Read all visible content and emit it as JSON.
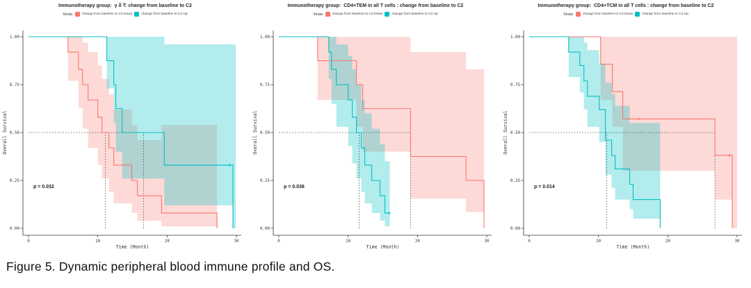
{
  "figure_caption": "Figure 5. Dynamic peripheral blood immune profile and OS.",
  "legend": {
    "strata_label": "Strata",
    "entries": [
      {
        "key": "down",
        "label": "change from baseline to C2-Down",
        "color": "#F8766D"
      },
      {
        "key": "up",
        "label": "change from baseline to C2-Up",
        "color": "#00BFC4"
      }
    ]
  },
  "axes": {
    "x_label": "Time (Month)",
    "y_label": "Overall Survival",
    "x_ticks": [
      0,
      10,
      20,
      30
    ],
    "y_ticks": [
      "0.00",
      "0.25",
      "0.50",
      "0.75",
      "1.00"
    ],
    "xlim": [
      0,
      30
    ],
    "ylim": [
      0,
      1
    ],
    "grid": false
  },
  "steps_format": "[time_months, survival_probability, ci_lower, ci_upper]",
  "chart_data": [
    {
      "type": "line",
      "subtype": "kaplan-meier",
      "title": "Immunotherapy group:  γ δ T: change from baseline to C2",
      "p_value": "p = 0.032",
      "median_survival_months": [
        11.1,
        16.6
      ],
      "series": [
        {
          "name": "change from baseline to C2-Down",
          "key": "down",
          "color": "#F8766D",
          "fill": "rgba(248,118,109,0.27)",
          "steps": [
            [
              0,
              1,
              1,
              1
            ],
            [
              5.7,
              0.92,
              0.77,
              1
            ],
            [
              7.2,
              0.83,
              0.63,
              1
            ],
            [
              7.8,
              0.75,
              0.52,
              0.97
            ],
            [
              8.6,
              0.67,
              0.42,
              0.92
            ],
            [
              10.0,
              0.58,
              0.33,
              0.85
            ],
            [
              10.6,
              0.5,
              0.26,
              0.78
            ],
            [
              11.6,
              0.42,
              0.19,
              0.7
            ],
            [
              12.3,
              0.33,
              0.13,
              0.62
            ],
            [
              14.9,
              0.25,
              0.08,
              0.54
            ],
            [
              15.7,
              0.17,
              0.04,
              0.46
            ],
            [
              19.2,
              0.08,
              0.01,
              0.54
            ],
            [
              27.2,
              0,
              0,
              0.54
            ]
          ],
          "censor_marks": []
        },
        {
          "name": "change from baseline to C2-Up",
          "key": "up",
          "color": "#00BFC4",
          "fill": "rgba(0,191,196,0.30)",
          "steps": [
            [
              0,
              1,
              1,
              1
            ],
            [
              11.3,
              0.875,
              0.73,
              1
            ],
            [
              12.3,
              0.75,
              0.55,
              1
            ],
            [
              12.6,
              0.625,
              0.4,
              1
            ],
            [
              13.5,
              0.5,
              0.26,
              1
            ],
            [
              19.6,
              0.33,
              0.12,
              0.96
            ],
            [
              29.5,
              0,
              0,
              0.96
            ]
          ],
          "band_tail_t": 29.9,
          "censor_marks": [
            [
              29.0,
              0.33
            ]
          ]
        }
      ]
    },
    {
      "type": "line",
      "subtype": "kaplan-meier",
      "title": "Immunotherapy group:  CD4+TEM in all T cells : change from baseline to C2",
      "p_value": "p = 0.036",
      "median_survival_months": [
        11.6,
        19.0
      ],
      "series": [
        {
          "name": "change from baseline to C2-Down",
          "key": "down",
          "color": "#F8766D",
          "fill": "rgba(248,118,109,0.27)",
          "steps": [
            [
              0,
              1,
              1,
              1
            ],
            [
              5.6,
              0.875,
              0.67,
              1
            ],
            [
              11.2,
              0.75,
              0.53,
              1
            ],
            [
              12.1,
              0.625,
              0.4,
              1
            ],
            [
              19.0,
              0.375,
              0.155,
              0.92
            ],
            [
              27.0,
              0.25,
              0.085,
              0.83
            ],
            [
              29.6,
              0,
              0,
              0.83
            ]
          ],
          "censor_marks": []
        },
        {
          "name": "change from baseline to C2-Up",
          "key": "up",
          "color": "#00BFC4",
          "fill": "rgba(0,191,196,0.30)",
          "steps": [
            [
              0,
              1,
              1,
              1
            ],
            [
              7.2,
              0.92,
              0.78,
              1
            ],
            [
              7.6,
              0.83,
              0.65,
              1
            ],
            [
              8.3,
              0.75,
              0.53,
              0.96
            ],
            [
              10.0,
              0.67,
              0.43,
              0.9
            ],
            [
              10.6,
              0.58,
              0.34,
              0.83
            ],
            [
              11.2,
              0.5,
              0.26,
              0.75
            ],
            [
              11.9,
              0.42,
              0.19,
              0.67
            ],
            [
              12.4,
              0.33,
              0.13,
              0.6
            ],
            [
              13.4,
              0.25,
              0.08,
              0.52
            ],
            [
              14.6,
              0.17,
              0.04,
              0.44
            ],
            [
              15.3,
              0.08,
              0.01,
              0.35
            ],
            [
              16.0,
              0.08,
              0.01,
              0.3
            ]
          ],
          "censor_marks": [
            [
              15.9,
              0.08
            ]
          ]
        }
      ]
    },
    {
      "type": "line",
      "subtype": "kaplan-meier",
      "title": "Immunotherapy group:  CD4+TCM in all T cells : change from baseline to C2",
      "p_value": "p = 0.014",
      "median_survival_months": [
        11.2,
        26.8
      ],
      "series": [
        {
          "name": "change from baseline to C2-Down",
          "key": "down",
          "color": "#F8766D",
          "fill": "rgba(248,118,109,0.27)",
          "steps": [
            [
              0,
              1,
              1,
              1
            ],
            [
              10.3,
              0.857,
              0.67,
              1
            ],
            [
              12.0,
              0.714,
              0.53,
              1
            ],
            [
              13.5,
              0.571,
              0.3,
              1
            ],
            [
              26.8,
              0.381,
              0.15,
              1
            ],
            [
              29.3,
              0,
              0,
              1
            ]
          ],
          "band_tail_t": 30,
          "censor_marks": [
            [
              15.8,
              0.571
            ],
            [
              28.9,
              0.381
            ]
          ]
        },
        {
          "name": "change from baseline to C2-Up",
          "key": "up",
          "color": "#00BFC4",
          "fill": "rgba(0,191,196,0.30)",
          "steps": [
            [
              0,
              1,
              1,
              1
            ],
            [
              5.7,
              0.92,
              0.79,
              1
            ],
            [
              7.3,
              0.85,
              0.71,
              1
            ],
            [
              7.9,
              0.77,
              0.62,
              0.97
            ],
            [
              8.4,
              0.69,
              0.53,
              0.93
            ],
            [
              10.1,
              0.62,
              0.45,
              0.86
            ],
            [
              11.0,
              0.46,
              0.28,
              0.76
            ],
            [
              11.9,
              0.38,
              0.21,
              0.7
            ],
            [
              12.4,
              0.31,
              0.15,
              0.64
            ],
            [
              14.5,
              0.23,
              0.1,
              0.55
            ],
            [
              15.0,
              0.15,
              0.05,
              0.55
            ],
            [
              18.9,
              0,
              0,
              0.55
            ]
          ],
          "censor_marks": []
        }
      ]
    }
  ]
}
